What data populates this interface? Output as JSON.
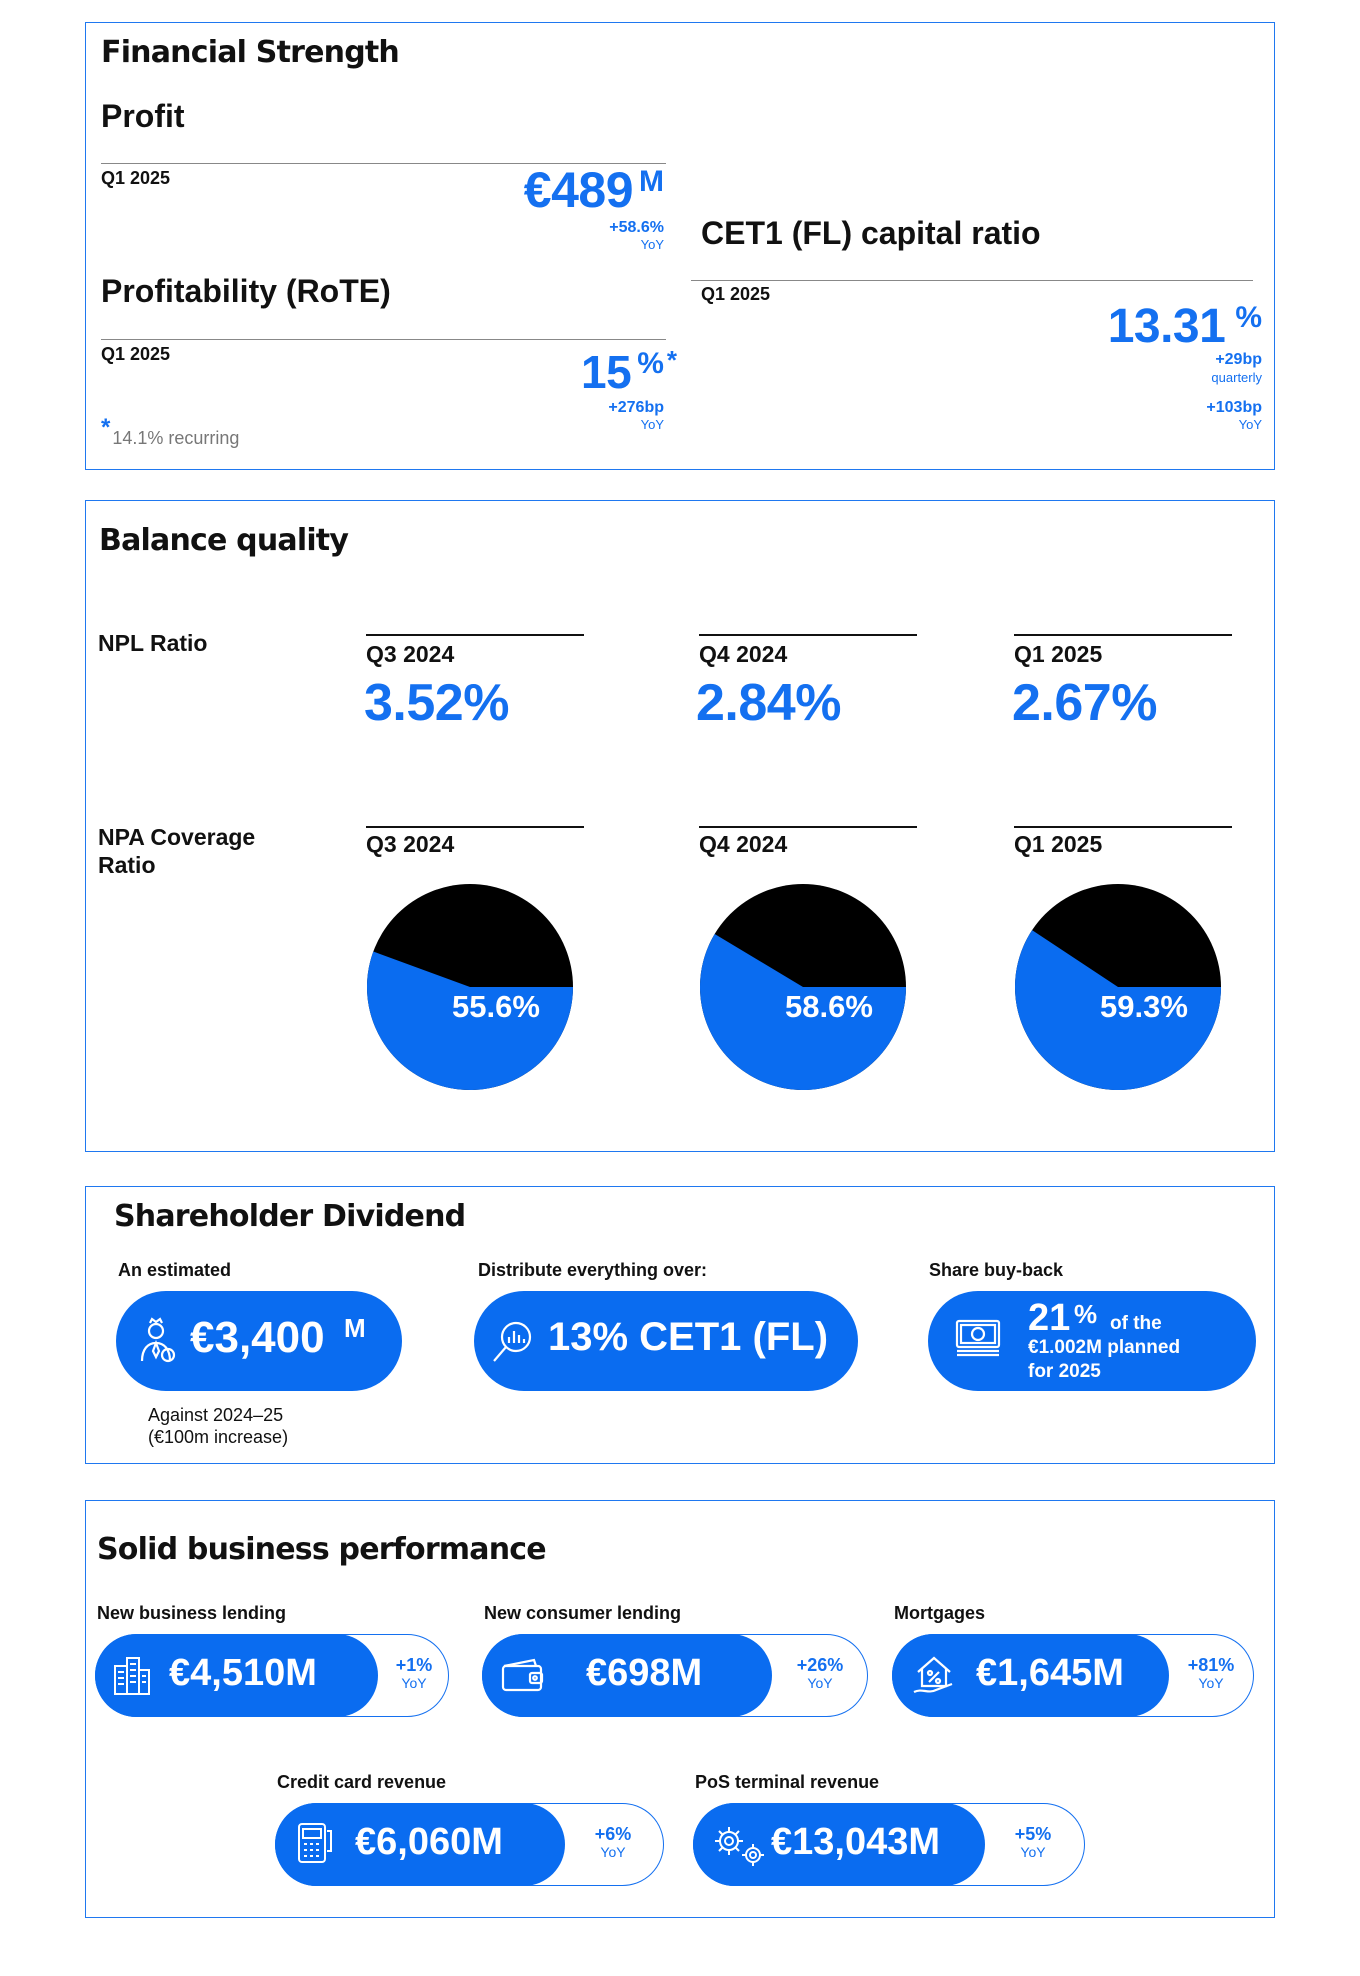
{
  "financial": {
    "title": "Financial Strength",
    "profit": {
      "title": "Profit",
      "period": "Q1 2025",
      "value": "€489",
      "unit": "M",
      "change": "+58.6%",
      "change_note": "YoY"
    },
    "rote": {
      "title": "Profitability (RoTE)",
      "period": "Q1 2025",
      "value": "15",
      "unit": "%",
      "asterisk": "*",
      "change": "+276bp",
      "change_note": "YoY",
      "footnote_mark": "*",
      "footnote": "14.1% recurring"
    },
    "cet1": {
      "title": "CET1 (FL) capital ratio",
      "period": "Q1 2025",
      "value": "13.31",
      "unit": "%",
      "change1": "+29bp",
      "change1_note": "quarterly",
      "change2": "+103bp",
      "change2_note": "YoY"
    }
  },
  "balance": {
    "title": "Balance quality",
    "npl_label": "NPL Ratio",
    "npa_label": "NPA Coverage Ratio",
    "periods": [
      "Q3 2024",
      "Q4 2024",
      "Q1 2025"
    ],
    "npl_values": [
      "3.52%",
      "2.84%",
      "2.67%"
    ],
    "npa_labels": [
      "55.6%",
      "58.6%",
      "59.3%"
    ],
    "colors": {
      "blue": "#0a6cf0",
      "black": "#000000"
    }
  },
  "chart_data": {
    "type": "pie",
    "title": "",
    "charts": [
      {
        "period": "Q3 2024",
        "coverage": 55.6,
        "remainder": 44.4
      },
      {
        "period": "Q4 2024",
        "coverage": 58.6,
        "remainder": 41.4
      },
      {
        "period": "Q1 2025",
        "coverage": 59.3,
        "remainder": 40.7
      }
    ]
  },
  "dividend": {
    "title": "Shareholder Dividend",
    "estimated": {
      "caption": "An estimated",
      "value": "€3,400",
      "unit": "M",
      "icon": "shareholder-icon",
      "note_line1": "Against 2024–25",
      "note_line2": "(€100m increase)"
    },
    "distribute": {
      "caption": "Distribute everything over:",
      "value": "13% CET1 (FL)",
      "icon": "analysis-icon"
    },
    "buyback": {
      "caption": "Share buy-back",
      "value": "21",
      "unit": "%",
      "text1": "of the",
      "text2": "€1.002M planned",
      "text3": "for 2025",
      "icon": "banknote-icon"
    }
  },
  "business": {
    "title": "Solid business performance",
    "items": [
      {
        "caption": "New business lending",
        "value": "€4,510M",
        "change": "+1%",
        "note": "YoY",
        "icon": "buildings-icon"
      },
      {
        "caption": "New consumer lending",
        "value": "€698M",
        "change": "+26%",
        "note": "YoY",
        "icon": "wallet-icon"
      },
      {
        "caption": "Mortgages",
        "value": "€1,645M",
        "change": "+81%",
        "note": "YoY",
        "icon": "house-percent-icon"
      },
      {
        "caption": "Credit card revenue",
        "value": "€6,060M",
        "change": "+6%",
        "note": "YoY",
        "icon": "card-terminal-icon"
      },
      {
        "caption": "PoS terminal revenue",
        "value": "€13,043M",
        "change": "+5%",
        "note": "YoY",
        "icon": "gears-icon"
      }
    ]
  }
}
